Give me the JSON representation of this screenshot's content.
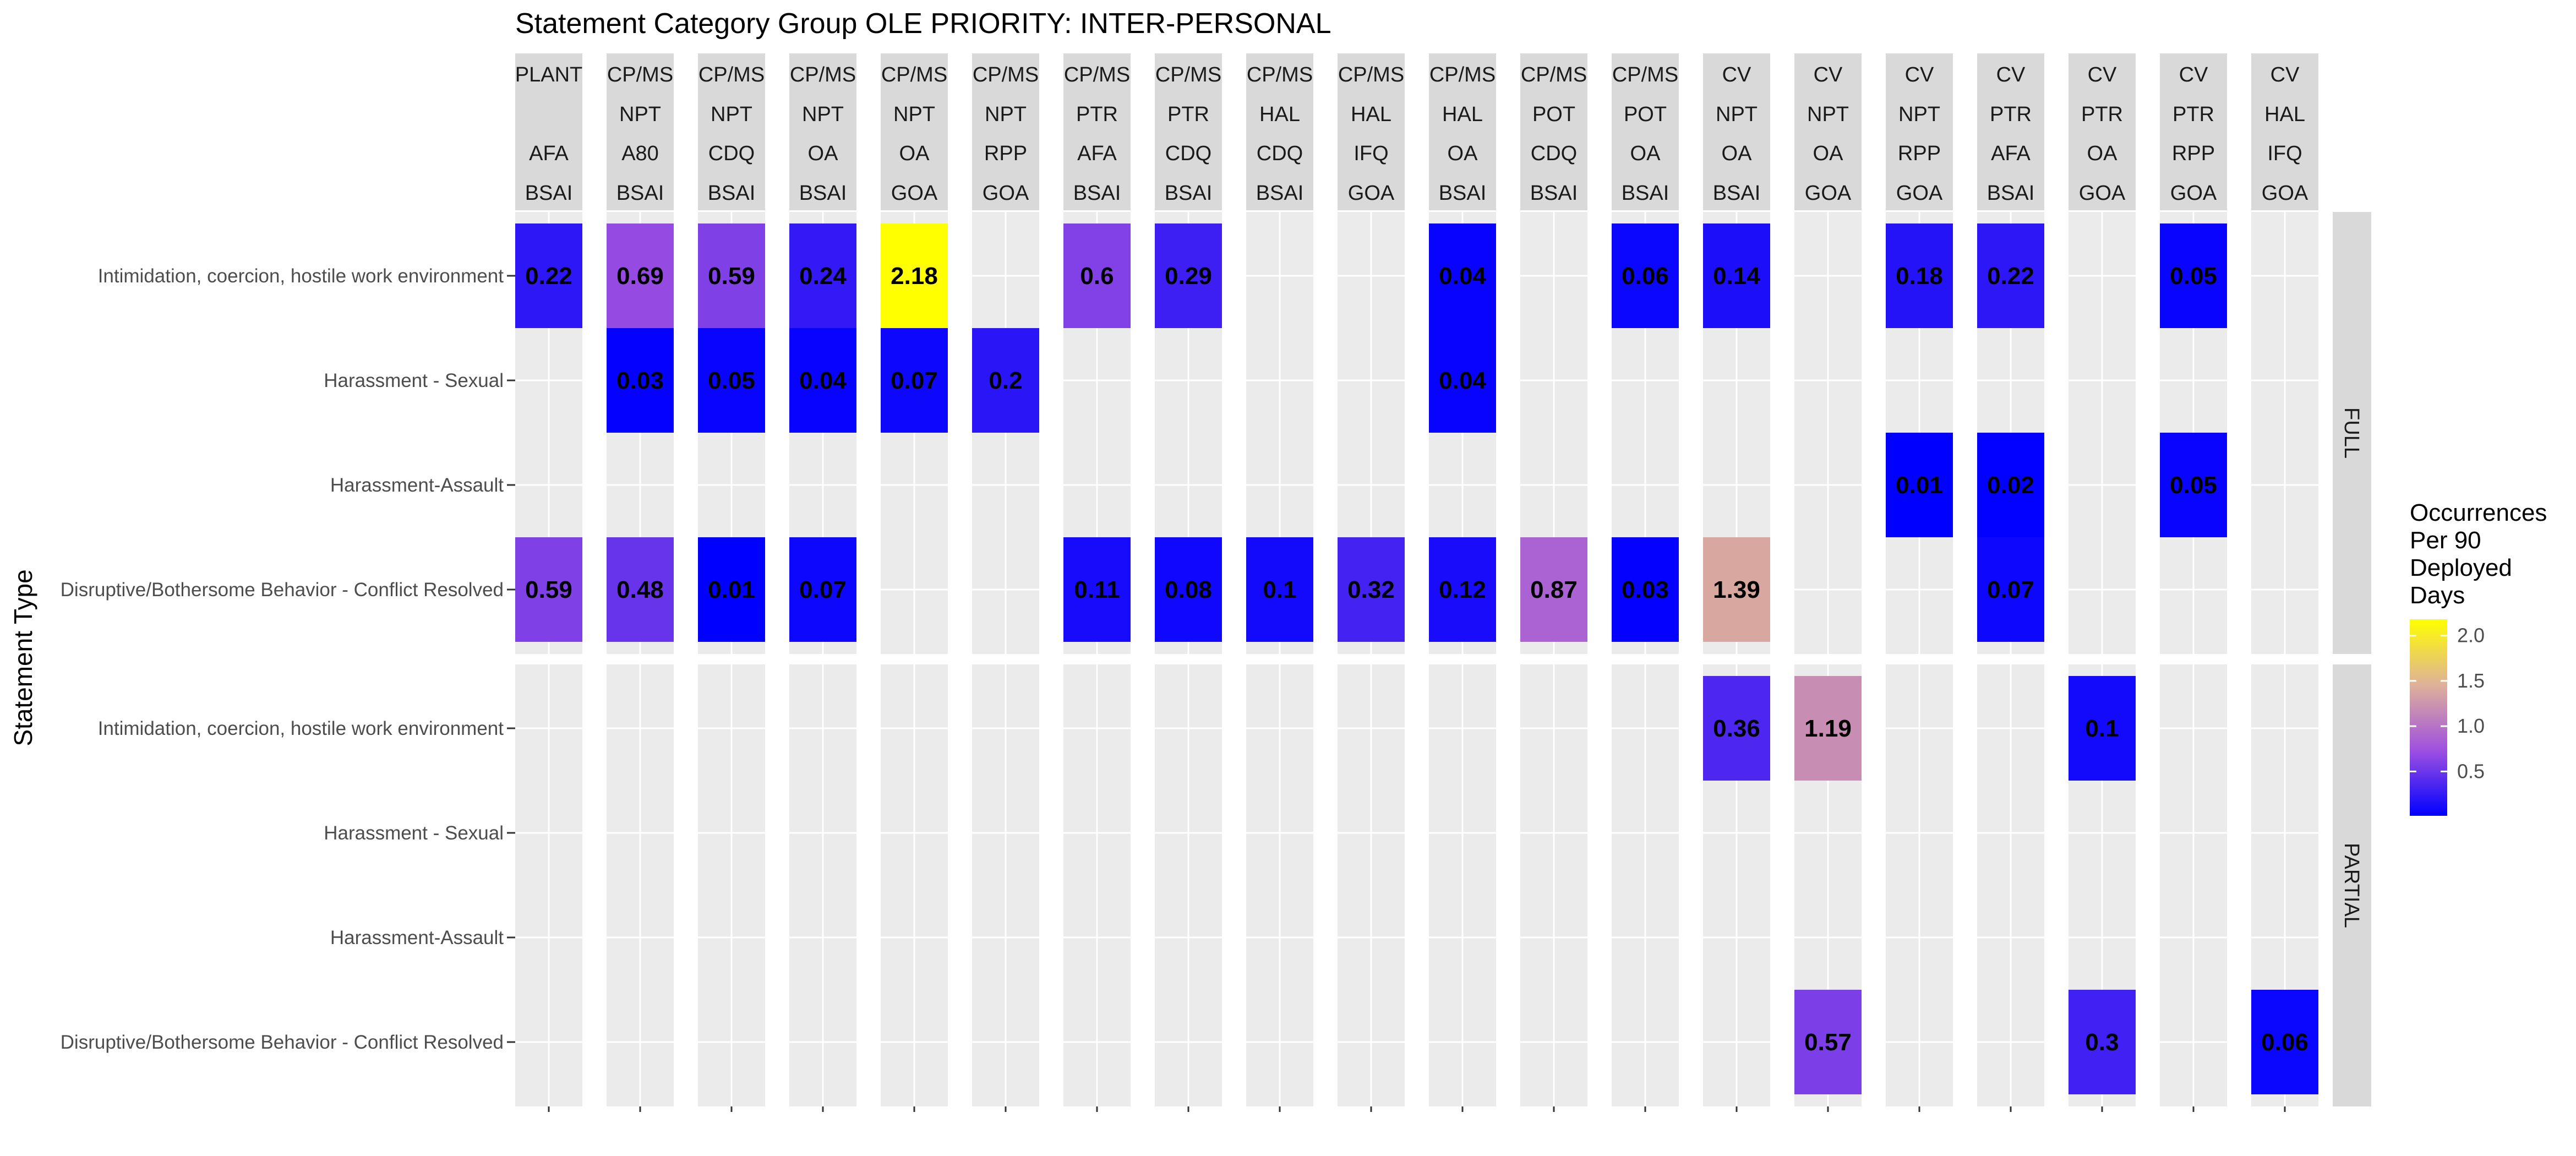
{
  "chart_data": {
    "type": "heatmap",
    "title": "Statement Category Group OLE PRIORITY: INTER-PERSONAL",
    "ylabel": "Statement Type",
    "legend": {
      "title_lines": [
        "Occurrences",
        "Per 90",
        "Deployed",
        "Days"
      ],
      "ticks": [
        "2.0",
        "1.5",
        "1.0",
        "0.5"
      ],
      "tick_values": [
        2.0,
        1.5,
        1.0,
        0.5
      ],
      "range": [
        0.01,
        2.18
      ],
      "colors": [
        "#0000ff",
        "#9f50e0",
        "#deb199",
        "#ffff00"
      ]
    },
    "columns": [
      {
        "lines": [
          "PLANT",
          "",
          "AFA",
          "BSAI"
        ]
      },
      {
        "lines": [
          "CP/MS",
          "NPT",
          "A80",
          "BSAI"
        ]
      },
      {
        "lines": [
          "CP/MS",
          "NPT",
          "CDQ",
          "BSAI"
        ]
      },
      {
        "lines": [
          "CP/MS",
          "NPT",
          "OA",
          "BSAI"
        ]
      },
      {
        "lines": [
          "CP/MS",
          "NPT",
          "OA",
          "GOA"
        ]
      },
      {
        "lines": [
          "CP/MS",
          "NPT",
          "RPP",
          "GOA"
        ]
      },
      {
        "lines": [
          "CP/MS",
          "PTR",
          "AFA",
          "BSAI"
        ]
      },
      {
        "lines": [
          "CP/MS",
          "PTR",
          "CDQ",
          "BSAI"
        ]
      },
      {
        "lines": [
          "CP/MS",
          "HAL",
          "CDQ",
          "BSAI"
        ]
      },
      {
        "lines": [
          "CP/MS",
          "HAL",
          "IFQ",
          "GOA"
        ]
      },
      {
        "lines": [
          "CP/MS",
          "HAL",
          "OA",
          "BSAI"
        ]
      },
      {
        "lines": [
          "CP/MS",
          "POT",
          "CDQ",
          "BSAI"
        ]
      },
      {
        "lines": [
          "CP/MS",
          "POT",
          "OA",
          "BSAI"
        ]
      },
      {
        "lines": [
          "CV",
          "NPT",
          "OA",
          "BSAI"
        ]
      },
      {
        "lines": [
          "CV",
          "NPT",
          "OA",
          "GOA"
        ]
      },
      {
        "lines": [
          "CV",
          "NPT",
          "RPP",
          "GOA"
        ]
      },
      {
        "lines": [
          "CV",
          "PTR",
          "AFA",
          "BSAI"
        ]
      },
      {
        "lines": [
          "CV",
          "PTR",
          "OA",
          "GOA"
        ]
      },
      {
        "lines": [
          "CV",
          "PTR",
          "RPP",
          "GOA"
        ]
      },
      {
        "lines": [
          "CV",
          "HAL",
          "IFQ",
          "GOA"
        ]
      }
    ],
    "rows": [
      "Intimidation, coercion, hostile work environment",
      "Harassment - Sexual",
      "Harassment-Assault",
      "Disruptive/Bothersome Behavior - Conflict Resolved"
    ],
    "panels": [
      {
        "name": "FULL",
        "cells": [
          {
            "row": 0,
            "col": 0,
            "value": 0.22,
            "label": "0.22"
          },
          {
            "row": 0,
            "col": 1,
            "value": 0.69,
            "label": "0.69"
          },
          {
            "row": 0,
            "col": 2,
            "value": 0.59,
            "label": "0.59"
          },
          {
            "row": 0,
            "col": 3,
            "value": 0.24,
            "label": "0.24"
          },
          {
            "row": 0,
            "col": 4,
            "value": 2.18,
            "label": "2.18"
          },
          {
            "row": 0,
            "col": 6,
            "value": 0.6,
            "label": "0.6"
          },
          {
            "row": 0,
            "col": 7,
            "value": 0.29,
            "label": "0.29"
          },
          {
            "row": 0,
            "col": 10,
            "value": 0.04,
            "label": "0.04"
          },
          {
            "row": 0,
            "col": 12,
            "value": 0.06,
            "label": "0.06"
          },
          {
            "row": 0,
            "col": 13,
            "value": 0.14,
            "label": "0.14"
          },
          {
            "row": 0,
            "col": 15,
            "value": 0.18,
            "label": "0.18"
          },
          {
            "row": 0,
            "col": 16,
            "value": 0.22,
            "label": "0.22"
          },
          {
            "row": 0,
            "col": 18,
            "value": 0.05,
            "label": "0.05"
          },
          {
            "row": 1,
            "col": 1,
            "value": 0.03,
            "label": "0.03"
          },
          {
            "row": 1,
            "col": 2,
            "value": 0.05,
            "label": "0.05"
          },
          {
            "row": 1,
            "col": 3,
            "value": 0.04,
            "label": "0.04"
          },
          {
            "row": 1,
            "col": 4,
            "value": 0.07,
            "label": "0.07"
          },
          {
            "row": 1,
            "col": 5,
            "value": 0.2,
            "label": "0.2"
          },
          {
            "row": 1,
            "col": 10,
            "value": 0.04,
            "label": "0.04"
          },
          {
            "row": 2,
            "col": 15,
            "value": 0.01,
            "label": "0.01"
          },
          {
            "row": 2,
            "col": 16,
            "value": 0.02,
            "label": "0.02"
          },
          {
            "row": 2,
            "col": 18,
            "value": 0.05,
            "label": "0.05"
          },
          {
            "row": 3,
            "col": 0,
            "value": 0.59,
            "label": "0.59"
          },
          {
            "row": 3,
            "col": 1,
            "value": 0.48,
            "label": "0.48"
          },
          {
            "row": 3,
            "col": 2,
            "value": 0.01,
            "label": "0.01"
          },
          {
            "row": 3,
            "col": 3,
            "value": 0.07,
            "label": "0.07"
          },
          {
            "row": 3,
            "col": 6,
            "value": 0.11,
            "label": "0.11"
          },
          {
            "row": 3,
            "col": 7,
            "value": 0.08,
            "label": "0.08"
          },
          {
            "row": 3,
            "col": 8,
            "value": 0.1,
            "label": "0.1"
          },
          {
            "row": 3,
            "col": 9,
            "value": 0.32,
            "label": "0.32"
          },
          {
            "row": 3,
            "col": 10,
            "value": 0.12,
            "label": "0.12"
          },
          {
            "row": 3,
            "col": 11,
            "value": 0.87,
            "label": "0.87"
          },
          {
            "row": 3,
            "col": 12,
            "value": 0.03,
            "label": "0.03"
          },
          {
            "row": 3,
            "col": 13,
            "value": 1.39,
            "label": "1.39"
          },
          {
            "row": 3,
            "col": 16,
            "value": 0.07,
            "label": "0.07"
          }
        ]
      },
      {
        "name": "PARTIAL",
        "cells": [
          {
            "row": 0,
            "col": 13,
            "value": 0.36,
            "label": "0.36"
          },
          {
            "row": 0,
            "col": 14,
            "value": 1.19,
            "label": "1.19"
          },
          {
            "row": 0,
            "col": 17,
            "value": 0.1,
            "label": "0.1"
          },
          {
            "row": 3,
            "col": 14,
            "value": 0.57,
            "label": "0.57"
          },
          {
            "row": 3,
            "col": 17,
            "value": 0.3,
            "label": "0.3"
          },
          {
            "row": 3,
            "col": 19,
            "value": 0.06,
            "label": "0.06"
          }
        ]
      }
    ],
    "colors": {
      "panel_bg": "#ebebeb",
      "strip_bg": "#d9d9d9",
      "grid": "#ffffff"
    }
  }
}
